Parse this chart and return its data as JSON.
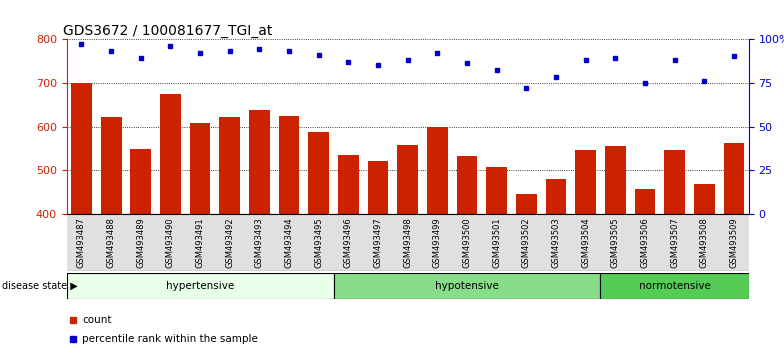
{
  "title": "GDS3672 / 100081677_TGI_at",
  "samples": [
    "GSM493487",
    "GSM493488",
    "GSM493489",
    "GSM493490",
    "GSM493491",
    "GSM493492",
    "GSM493493",
    "GSM493494",
    "GSM493495",
    "GSM493496",
    "GSM493497",
    "GSM493498",
    "GSM493499",
    "GSM493500",
    "GSM493501",
    "GSM493502",
    "GSM493503",
    "GSM493504",
    "GSM493505",
    "GSM493506",
    "GSM493507",
    "GSM493508",
    "GSM493509"
  ],
  "counts": [
    700,
    622,
    549,
    674,
    607,
    622,
    638,
    624,
    588,
    534,
    521,
    557,
    600,
    533,
    507,
    447,
    480,
    547,
    555,
    458,
    546,
    469,
    562
  ],
  "percentiles": [
    97,
    93,
    89,
    96,
    92,
    93,
    94,
    93,
    91,
    87,
    85,
    88,
    92,
    86,
    82,
    72,
    78,
    88,
    89,
    75,
    88,
    76,
    90
  ],
  "groups": [
    {
      "label": "hypertensive",
      "start": 0,
      "end": 9,
      "color": "#e8ffe8"
    },
    {
      "label": "hypotensive",
      "start": 9,
      "end": 18,
      "color": "#88dd88"
    },
    {
      "label": "normotensive",
      "start": 18,
      "end": 23,
      "color": "#55cc55"
    }
  ],
  "bar_color": "#cc2200",
  "dot_color": "#0000cc",
  "left_ylim": [
    400,
    800
  ],
  "left_yticks": [
    400,
    500,
    600,
    700,
    800
  ],
  "right_ylim": [
    0,
    100
  ],
  "right_yticks": [
    0,
    25,
    50,
    75,
    100
  ],
  "right_yticklabels": [
    "0",
    "25",
    "50",
    "75",
    "100%"
  ],
  "grid_values": [
    500,
    600,
    700
  ],
  "title_fontsize": 10,
  "axis_label_color_left": "#cc2200",
  "axis_label_color_right": "#0000cc",
  "bg_color": "#ffffff",
  "bar_width": 0.7,
  "xtick_bg": "#e0e0e0"
}
